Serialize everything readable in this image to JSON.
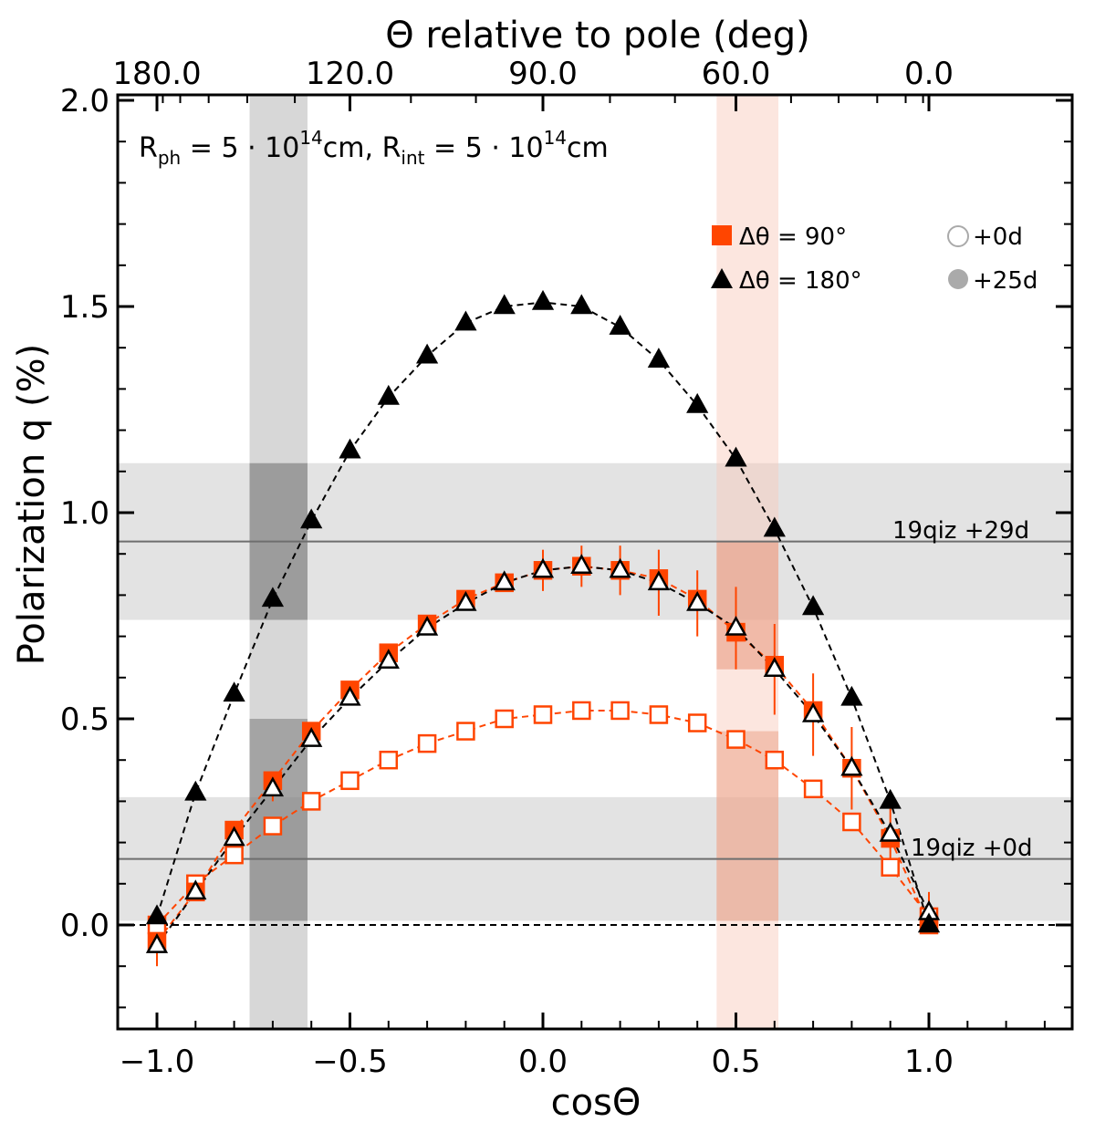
{
  "chart_data": {
    "type": "scatter",
    "xlabel": "cosΘ",
    "ylabel": "Polarization q (%)",
    "top_xlabel": "Θ relative to pole (deg)",
    "xlim": [
      -1.1,
      1.38
    ],
    "ylim": [
      -0.25,
      2.0
    ],
    "x_ticks": [
      -1.0,
      -0.5,
      0.0,
      0.5,
      1.0
    ],
    "x_tick_labels": [
      "−1.0",
      "−0.5",
      "0.0",
      "0.5",
      "1.0"
    ],
    "y_ticks": [
      0.0,
      0.5,
      1.0,
      1.5,
      2.0
    ],
    "y_tick_labels": [
      "0.0",
      "0.5",
      "1.0",
      "1.5",
      "2.0"
    ],
    "top_ticks_deg": [
      180,
      120,
      90,
      60,
      0
    ],
    "top_tick_labels": [
      "180.0",
      "120.0",
      "90.0",
      "60.0",
      "0.0"
    ],
    "annotation": {
      "R": "R",
      "ph": "ph",
      "eq1": " = 5 · 10",
      "exp1": "14",
      "cm1": "cm, ",
      "R2": "R",
      "int": "int",
      "eq2": " = 5 · 10",
      "exp2": "14",
      "cm2": "cm"
    },
    "horizontal_bands": [
      {
        "label": "19qiz +29d",
        "value": 0.93,
        "low": 0.74,
        "high": 1.12
      },
      {
        "label": "19qiz +0d",
        "value": 0.16,
        "low": 0.01,
        "high": 0.31
      }
    ],
    "vertical_bands": [
      {
        "xmin": -0.76,
        "xmax": -0.61,
        "color": "#8c8c8c"
      },
      {
        "xmin": 0.45,
        "xmax": 0.61,
        "color": "#f9c8b8"
      }
    ],
    "colors": {
      "orange": "#ff4500",
      "black": "#000000",
      "band_gray": "#d3d3d3",
      "ref_line": "#6e6e6e"
    },
    "x": [
      -1.0,
      -0.9,
      -0.8,
      -0.7,
      -0.6,
      -0.5,
      -0.4,
      -0.3,
      -0.2,
      -0.1,
      0.0,
      0.1,
      0.2,
      0.3,
      0.4,
      0.5,
      0.6,
      0.7,
      0.8,
      0.9,
      1.0
    ],
    "series": [
      {
        "name": "Δθ = 90° +0d",
        "marker": "square",
        "filled": false,
        "color": "#ff4500",
        "values": [
          0.0,
          0.1,
          0.17,
          0.24,
          0.3,
          0.35,
          0.4,
          0.44,
          0.47,
          0.5,
          0.51,
          0.52,
          0.52,
          0.51,
          0.49,
          0.45,
          0.4,
          0.33,
          0.25,
          0.14,
          0.02
        ]
      },
      {
        "name": "Δθ = 90° +25d",
        "marker": "square",
        "filled": true,
        "color": "#ff4500",
        "values": [
          -0.04,
          0.08,
          0.23,
          0.35,
          0.47,
          0.57,
          0.66,
          0.73,
          0.79,
          0.83,
          0.86,
          0.87,
          0.86,
          0.84,
          0.79,
          0.71,
          0.63,
          0.52,
          0.38,
          0.21,
          0.0
        ]
      },
      {
        "name": "Δθ = 180° +0d",
        "marker": "triangle",
        "filled": false,
        "color": "#000000",
        "values": [
          -0.05,
          0.08,
          0.21,
          0.33,
          0.45,
          0.55,
          0.64,
          0.72,
          0.78,
          0.83,
          0.86,
          0.87,
          0.86,
          0.83,
          0.78,
          0.72,
          0.62,
          0.51,
          0.38,
          0.22,
          0.03
        ]
      },
      {
        "name": "Δθ = 180° +25d",
        "marker": "triangle",
        "filled": true,
        "color": "#000000",
        "values": [
          0.02,
          0.32,
          0.56,
          0.79,
          0.98,
          1.15,
          1.28,
          1.38,
          1.46,
          1.5,
          1.51,
          1.5,
          1.45,
          1.37,
          1.26,
          1.13,
          0.96,
          0.77,
          0.55,
          0.3,
          0.0
        ]
      }
    ],
    "error_bars": {
      "x": [
        0.0,
        0.1,
        0.2,
        0.3,
        0.4,
        0.5,
        0.6,
        0.7,
        0.8,
        0.9,
        1.0,
        -1.0,
        -0.7
      ],
      "center": [
        0.86,
        0.87,
        0.86,
        0.83,
        0.78,
        0.72,
        0.62,
        0.51,
        0.38,
        0.22,
        0.03,
        -0.05,
        0.33
      ],
      "err": [
        0.05,
        0.05,
        0.06,
        0.08,
        0.08,
        0.1,
        0.11,
        0.1,
        0.1,
        0.07,
        0.05,
        0.05,
        0.03
      ]
    },
    "legend": {
      "items": [
        {
          "label": "Δθ = 90°",
          "marker": "square",
          "color": "#ff4500"
        },
        {
          "label": "Δθ = 180°",
          "marker": "triangle",
          "color": "#000000"
        },
        {
          "label": "+0d",
          "marker": "circle-open",
          "color": "#aaaaaa"
        },
        {
          "label": "+25d",
          "marker": "circle-filled",
          "color": "#aaaaaa"
        }
      ],
      "placement": "upper-right"
    }
  }
}
